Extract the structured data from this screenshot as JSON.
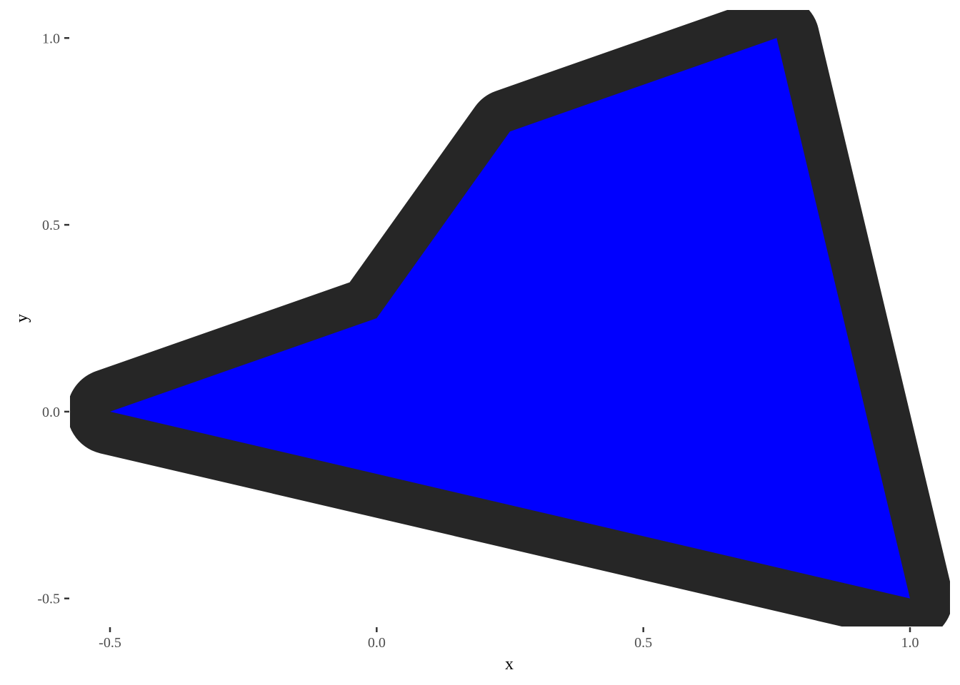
{
  "chart_data": {
    "type": "polygon",
    "polygon": {
      "x": [
        -0.5,
        0.0,
        0.25,
        0.75,
        1.0
      ],
      "y": [
        0.0,
        0.25,
        0.75,
        1.0,
        -0.5
      ]
    },
    "fill_color": "#0000ff",
    "outline_color": "#262626",
    "xlabel": "x",
    "ylabel": "y",
    "xlim": [
      -0.575,
      1.075
    ],
    "ylim": [
      -0.575,
      1.075
    ],
    "x_ticks": [
      {
        "value": -0.5,
        "label": "-0.5"
      },
      {
        "value": 0.0,
        "label": "0.0"
      },
      {
        "value": 0.5,
        "label": "0.5"
      },
      {
        "value": 1.0,
        "label": "1.0"
      }
    ],
    "y_ticks": [
      {
        "value": -0.5,
        "label": "-0.5"
      },
      {
        "value": 0.0,
        "label": "0.0"
      },
      {
        "value": 0.5,
        "label": "0.5"
      },
      {
        "value": 1.0,
        "label": "1.0"
      }
    ],
    "grid": false,
    "background": "#ffffff"
  }
}
